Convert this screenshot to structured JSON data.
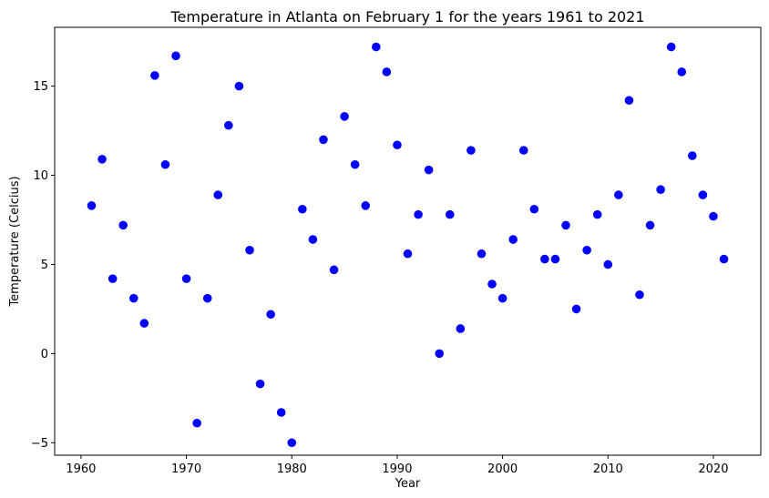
{
  "chart_data": {
    "type": "scatter",
    "title": "Temperature in Atlanta on February 1 for the years 1961 to 2021",
    "xlabel": "Year",
    "ylabel": "Temperature (Celcius)",
    "xlim": [
      1957.5,
      2024.5
    ],
    "ylim": [
      -5.7,
      18.3
    ],
    "xticks": [
      1960,
      1970,
      1980,
      1990,
      2000,
      2010,
      2020
    ],
    "yticks": [
      -5,
      0,
      5,
      10,
      15
    ],
    "grid": false,
    "legend": "none",
    "marker_color": "#0000ff",
    "series": [
      {
        "x": [
          1961,
          1962,
          1963,
          1964,
          1965,
          1966,
          1967,
          1968,
          1969,
          1970,
          1971,
          1972,
          1973,
          1974,
          1975,
          1976,
          1977,
          1978,
          1979,
          1980,
          1981,
          1982,
          1983,
          1984,
          1985,
          1986,
          1987,
          1988,
          1989,
          1990,
          1991,
          1992,
          1993,
          1994,
          1995,
          1996,
          1997,
          1998,
          1999,
          2000,
          2001,
          2002,
          2003,
          2004,
          2005,
          2006,
          2007,
          2008,
          2009,
          2010,
          2011,
          2012,
          2013,
          2014,
          2015,
          2016,
          2017,
          2018,
          2019,
          2020,
          2021
        ],
        "y": [
          8.3,
          10.9,
          4.2,
          7.2,
          3.1,
          1.7,
          15.6,
          10.6,
          16.7,
          4.2,
          -3.9,
          3.1,
          8.9,
          12.8,
          15.0,
          5.8,
          -1.7,
          2.2,
          -3.3,
          -5.0,
          8.1,
          6.4,
          12.0,
          4.7,
          13.3,
          10.6,
          8.3,
          17.2,
          15.8,
          11.7,
          5.6,
          7.8,
          10.3,
          0.0,
          7.8,
          1.4,
          11.4,
          5.6,
          3.9,
          3.1,
          6.4,
          11.4,
          8.1,
          5.3,
          5.3,
          7.2,
          2.5,
          5.8,
          7.8,
          5.0,
          8.9,
          14.2,
          3.3,
          7.2,
          9.2,
          17.2,
          15.8,
          11.1,
          8.9,
          7.7,
          5.3
        ]
      }
    ]
  }
}
